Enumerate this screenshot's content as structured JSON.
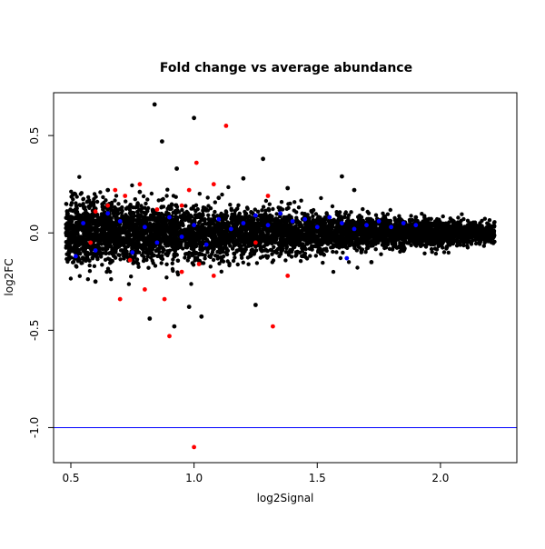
{
  "chart_data": {
    "type": "scatter",
    "title": "Fold change vs average abundance",
    "xlabel": "log2Signal",
    "ylabel": "log2FC",
    "xlim": [
      0.43,
      2.31
    ],
    "ylim": [
      -1.18,
      0.72
    ],
    "x_ticks": [
      0.5,
      1.0,
      1.5,
      2.0
    ],
    "x_tick_labels": [
      "0.5",
      "1.0",
      "1.5",
      "2.0"
    ],
    "y_ticks": [
      -1.0,
      -0.5,
      0.0,
      0.5
    ],
    "y_tick_labels": [
      "-1.0",
      "-0.5",
      "0.0",
      "0.5"
    ],
    "grid": false,
    "hline": {
      "y": -1.0,
      "color": "#0000ff"
    },
    "colors": {
      "black": "#000000",
      "blue": "#0000ff",
      "red": "#ff0000"
    },
    "series": [
      {
        "color": "black",
        "points": [
          [
            0.84,
            0.66
          ],
          [
            1.0,
            0.59
          ],
          [
            0.87,
            0.47
          ],
          [
            1.28,
            0.38
          ],
          [
            0.93,
            0.33
          ],
          [
            1.6,
            0.29
          ],
          [
            1.38,
            0.23
          ],
          [
            1.2,
            0.28
          ],
          [
            0.78,
            0.21
          ],
          [
            1.72,
            -0.15
          ],
          [
            1.25,
            -0.37
          ],
          [
            0.98,
            -0.38
          ],
          [
            1.03,
            -0.43
          ],
          [
            0.92,
            -0.48
          ],
          [
            0.82,
            -0.44
          ],
          [
            1.65,
            0.22
          ],
          [
            1.9,
            0.08
          ],
          [
            0.6,
            -0.25
          ],
          [
            1.1,
            0.18
          ],
          [
            0.65,
            0.22
          ]
        ]
      },
      {
        "color": "blue",
        "points": [
          [
            0.55,
            0.05
          ],
          [
            0.6,
            -0.09
          ],
          [
            0.7,
            0.06
          ],
          [
            0.75,
            -0.1
          ],
          [
            0.8,
            0.03
          ],
          [
            0.85,
            -0.05
          ],
          [
            0.9,
            0.08
          ],
          [
            0.95,
            -0.02
          ],
          [
            1.0,
            0.04
          ],
          [
            1.05,
            -0.06
          ],
          [
            1.1,
            0.07
          ],
          [
            1.15,
            0.02
          ],
          [
            1.2,
            0.05
          ],
          [
            1.25,
            0.09
          ],
          [
            1.3,
            0.04
          ],
          [
            1.35,
            0.1
          ],
          [
            1.4,
            0.06
          ],
          [
            1.45,
            0.07
          ],
          [
            1.5,
            0.03
          ],
          [
            1.55,
            0.08
          ],
          [
            1.6,
            0.05
          ],
          [
            1.65,
            0.02
          ],
          [
            1.7,
            0.04
          ],
          [
            1.75,
            0.06
          ],
          [
            1.8,
            0.03
          ],
          [
            1.85,
            0.05
          ],
          [
            1.9,
            0.04
          ],
          [
            0.52,
            -0.12
          ],
          [
            0.65,
            0.1
          ],
          [
            1.62,
            -0.13
          ]
        ]
      },
      {
        "color": "red",
        "points": [
          [
            1.13,
            0.55
          ],
          [
            1.01,
            0.36
          ],
          [
            0.72,
            0.19
          ],
          [
            0.98,
            0.22
          ],
          [
            1.08,
            0.25
          ],
          [
            0.65,
            0.14
          ],
          [
            0.95,
            0.14
          ],
          [
            0.85,
            0.12
          ],
          [
            1.3,
            0.19
          ],
          [
            0.68,
            0.22
          ],
          [
            0.6,
            0.11
          ],
          [
            0.78,
            0.25
          ],
          [
            1.32,
            -0.48
          ],
          [
            0.9,
            -0.53
          ],
          [
            0.7,
            -0.34
          ],
          [
            0.88,
            -0.34
          ],
          [
            1.08,
            -0.22
          ],
          [
            0.8,
            -0.29
          ],
          [
            1.02,
            -0.16
          ],
          [
            1.38,
            -0.22
          ],
          [
            0.74,
            -0.14
          ],
          [
            1.0,
            -1.1
          ],
          [
            0.95,
            -0.2
          ],
          [
            0.58,
            -0.05
          ],
          [
            1.25,
            -0.05
          ]
        ]
      }
    ]
  }
}
